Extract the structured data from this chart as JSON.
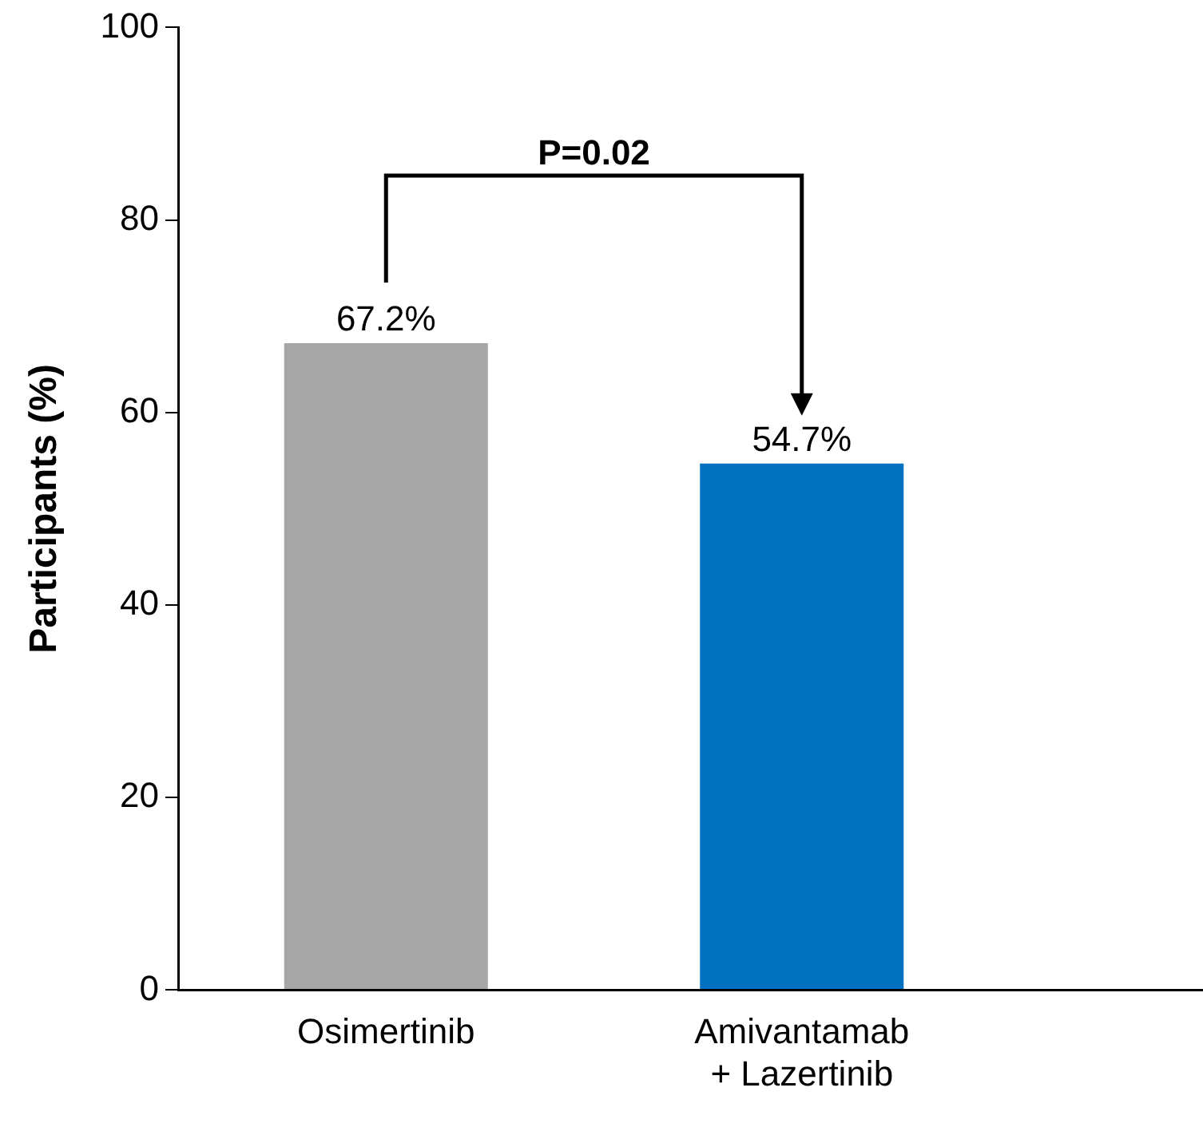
{
  "chart_data": {
    "type": "bar",
    "ylabel": "Participants (%)",
    "categories": [
      "Osimertinib",
      "Amivantamab + Lazertinib"
    ],
    "values": [
      67.2,
      54.7
    ],
    "colors": [
      "#a6a6a6",
      "#0070c0"
    ],
    "value_labels": [
      "67.2%",
      "54.7%"
    ],
    "ylim": [
      0,
      100
    ],
    "yticks": [
      0,
      20,
      40,
      60,
      80,
      100
    ],
    "annotations": [
      "P=0.02"
    ],
    "grid": false,
    "legend": false
  }
}
